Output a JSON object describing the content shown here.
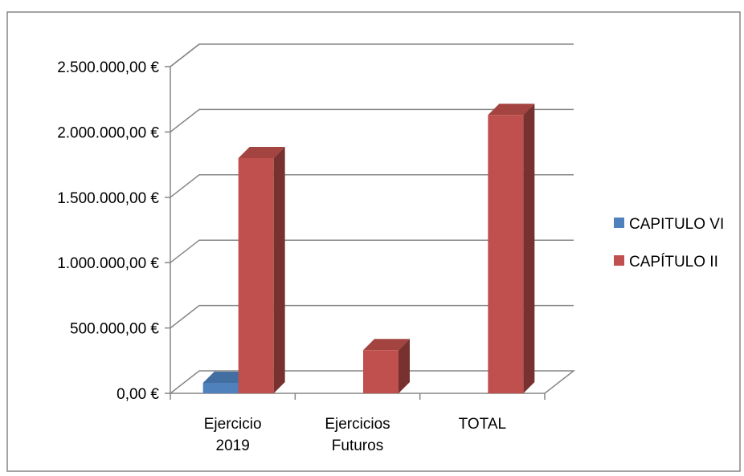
{
  "chart_data": {
    "type": "bar",
    "categories": [
      [
        "Ejercicio",
        "2019"
      ],
      [
        "Ejercicios",
        "Futuros"
      ],
      [
        "TOTAL"
      ]
    ],
    "series": [
      {
        "name": "CAPITULO VI",
        "color": "#4F81BD",
        "values": [
          80000,
          0,
          0
        ]
      },
      {
        "name": "CAPÍTULO  II",
        "color": "#C0504D",
        "values": [
          1800000,
          330000,
          2130000
        ]
      }
    ],
    "ylim": [
      0,
      2500000
    ],
    "yticks": [
      "0,00 €",
      "500.000,00 €",
      "1.000.000,00 €",
      "1.500.000,00 €",
      "2.000.000,00 €",
      "2.500.000,00 €"
    ],
    "grid": true,
    "legend": "right",
    "style": "3d-clustered-column"
  }
}
